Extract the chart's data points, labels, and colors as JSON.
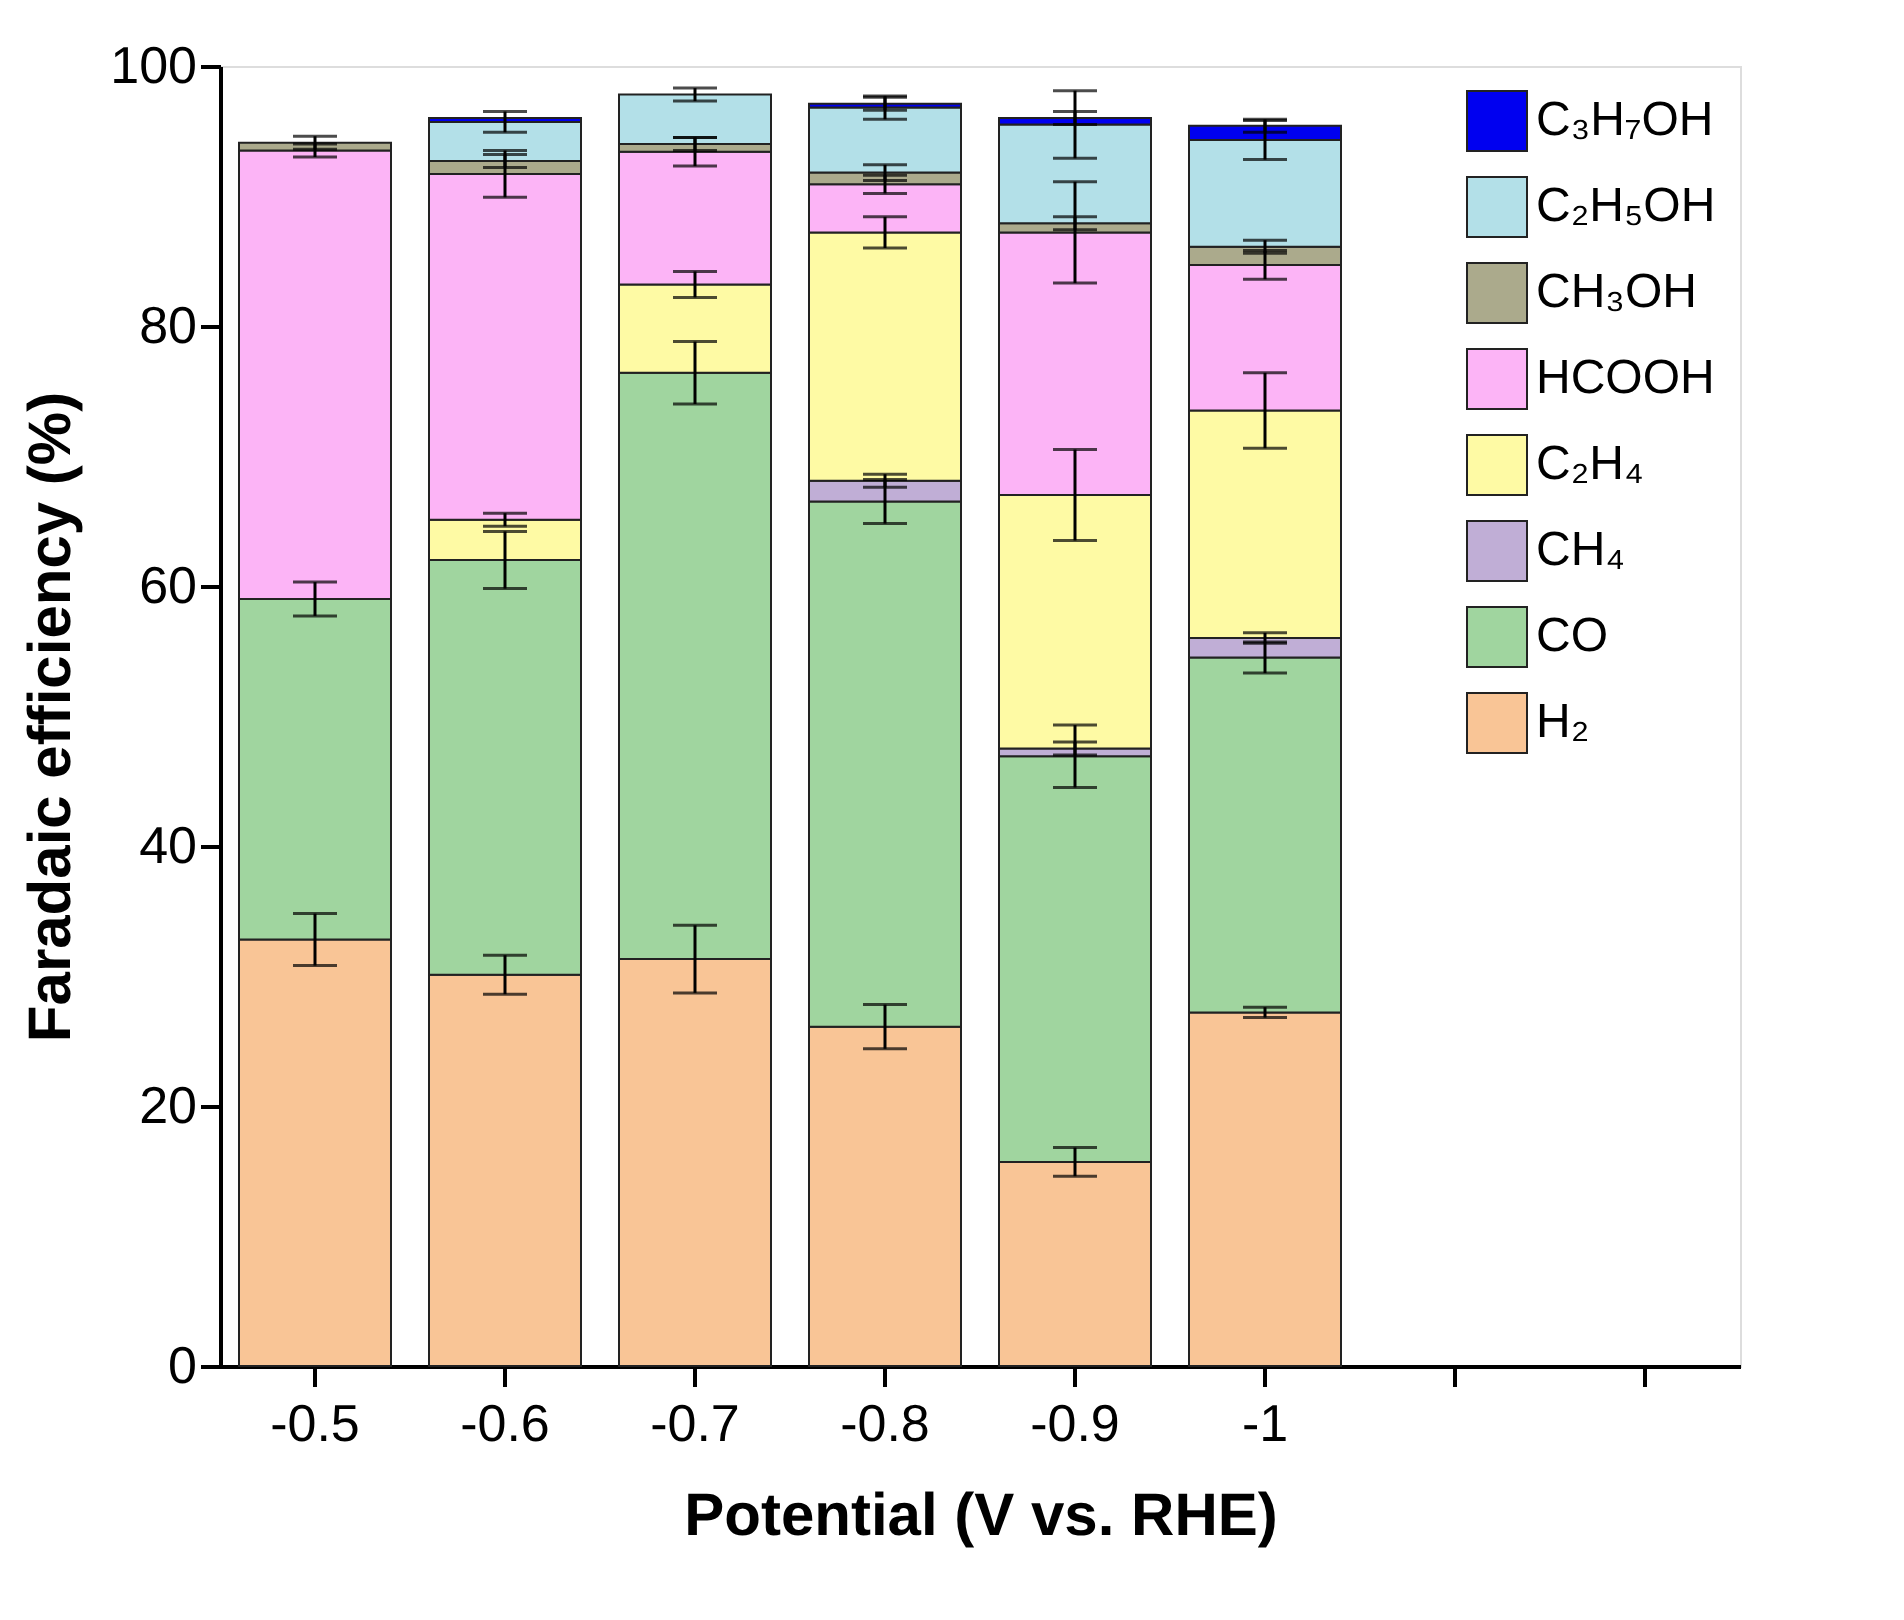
{
  "chart_data": {
    "type": "bar",
    "stacked": true,
    "xlabel": "Potential (V vs. RHE)",
    "ylabel": "Faradaic efficiency (%)",
    "categories": [
      "-0.5",
      "-0.6",
      "-0.7",
      "-0.8",
      "-0.9",
      "-1",
      null,
      null
    ],
    "ylim": [
      0,
      100
    ],
    "yticks": [
      0,
      20,
      40,
      60,
      80,
      100
    ],
    "grid": false,
    "legend": "right",
    "series": [
      {
        "name": "H₂",
        "color": "#f9c596",
        "values": [
          32.8,
          30.1,
          31.3,
          26.1,
          15.7,
          27.2,
          null,
          null
        ],
        "errors": [
          2.0,
          1.5,
          2.6,
          1.7,
          1.1,
          0.4,
          null,
          null
        ]
      },
      {
        "name": "CO",
        "color": "#a0d59f",
        "values": [
          26.2,
          31.9,
          45.1,
          40.4,
          31.2,
          27.3,
          null,
          null
        ],
        "errors": [
          1.3,
          2.2,
          2.4,
          1.7,
          2.4,
          1.2,
          null,
          null
        ]
      },
      {
        "name": "CH₄",
        "color": "#c0aed6",
        "values": [
          null,
          null,
          null,
          1.6,
          0.6,
          1.5,
          null,
          null
        ],
        "errors": [
          null,
          null,
          null,
          0.5,
          0.5,
          0.4,
          null,
          null
        ]
      },
      {
        "name": "C₂H₄",
        "color": "#fefaa4",
        "values": [
          null,
          3.1,
          6.8,
          19.1,
          19.5,
          17.5,
          null,
          null
        ],
        "errors": [
          null,
          0.5,
          1.0,
          1.2,
          3.5,
          2.9,
          null,
          null
        ]
      },
      {
        "name": "HCOOH",
        "color": "#fcb4f6",
        "values": [
          34.5,
          26.6,
          10.2,
          3.7,
          20.2,
          11.2,
          null,
          null
        ],
        "errors": [
          0.5,
          1.8,
          1.1,
          0.7,
          3.9,
          1.1,
          null,
          null
        ]
      },
      {
        "name": "CH₃OH",
        "color": "#abaa8c",
        "values": [
          0.6,
          1.0,
          0.6,
          0.9,
          0.7,
          1.4,
          null,
          null
        ],
        "errors": [
          0.5,
          0.5,
          0.5,
          0.6,
          0.5,
          0.5,
          null,
          null
        ]
      },
      {
        "name": "C₂H₅OH",
        "color": "#b3e0e8",
        "values": [
          null,
          3.0,
          3.8,
          5.0,
          7.6,
          8.2,
          null,
          null
        ],
        "errors": [
          null,
          0.8,
          0.5,
          0.9,
          2.6,
          1.5,
          null,
          null
        ]
      },
      {
        "name": "C₃H₇OH",
        "color": "#0000f0",
        "values": [
          null,
          0.3,
          null,
          0.3,
          0.5,
          1.1,
          null,
          null
        ],
        "errors": [
          null,
          null,
          null,
          0.5,
          0.5,
          0.5,
          null,
          null
        ]
      }
    ]
  }
}
